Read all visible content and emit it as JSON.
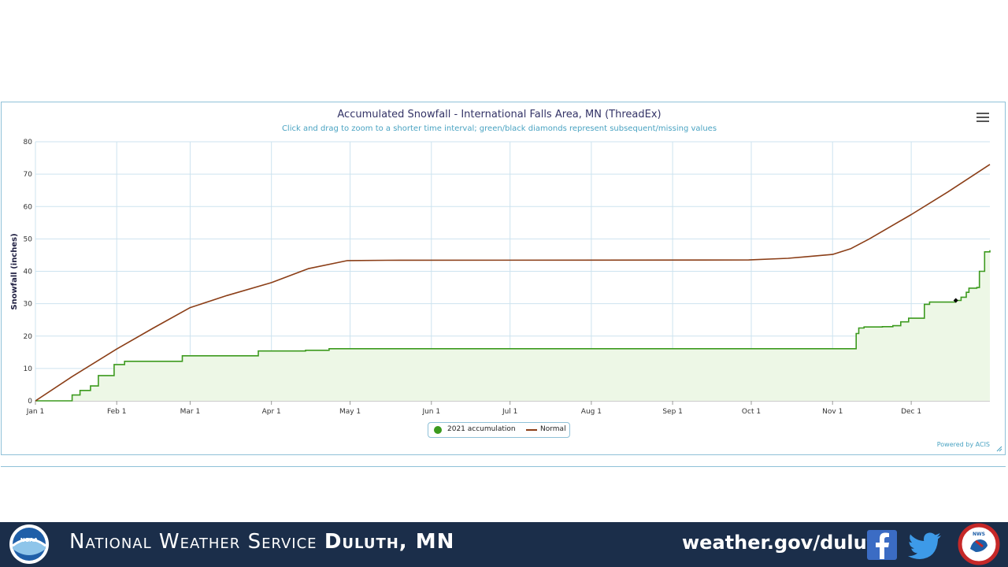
{
  "chart_data": {
    "type": "line",
    "title": "Accumulated Snowfall - International Falls Area, MN (ThreadEx)",
    "subtitle": "Click and drag to zoom to a shorter time interval; green/black diamonds represent subsequent/missing values",
    "ylabel": "Snowfall (inches)",
    "xlabel": "",
    "ylim": [
      0,
      80
    ],
    "yticks": [
      0,
      10,
      20,
      30,
      40,
      50,
      60,
      70,
      80
    ],
    "xticks": [
      "Jan 1",
      "Feb 1",
      "Mar 1",
      "Apr 1",
      "May 1",
      "Jun 1",
      "Jul 1",
      "Aug 1",
      "Sep 1",
      "Oct 1",
      "Nov 1",
      "Dec 1"
    ],
    "grid": true,
    "legend_position": "bottom-center",
    "credits": "Powered by ACIS",
    "series": [
      {
        "name": "2021 accumulation",
        "color": "#3c9a1e",
        "fill": "#edf7e6",
        "x": [
          "2021-01-01",
          "2021-01-14",
          "2021-01-15",
          "2021-01-17",
          "2021-01-18",
          "2021-01-20",
          "2021-01-22",
          "2021-01-23",
          "2021-01-25",
          "2021-01-26",
          "2021-01-31",
          "2021-02-01",
          "2021-02-04",
          "2021-02-05",
          "2021-02-26",
          "2021-02-27",
          "2021-03-27",
          "2021-03-28",
          "2021-04-14",
          "2021-04-22",
          "2021-04-23",
          "2021-11-01",
          "2021-11-10",
          "2021-11-11",
          "2021-11-13",
          "2021-11-20",
          "2021-11-24",
          "2021-11-26",
          "2021-11-27",
          "2021-11-30",
          "2021-12-03",
          "2021-12-06",
          "2021-12-08",
          "2021-12-15",
          "2021-12-18",
          "2021-12-20",
          "2021-12-22",
          "2021-12-23",
          "2021-12-26",
          "2021-12-27",
          "2021-12-29",
          "2021-12-31"
        ],
        "values": [
          0,
          0,
          1.8,
          1.8,
          3.2,
          3.2,
          4.6,
          4.6,
          7.8,
          7.8,
          11.2,
          11.2,
          12.2,
          12.2,
          13.9,
          13.9,
          15.4,
          15.4,
          15.6,
          15.6,
          16.1,
          16.1,
          20.8,
          22.5,
          22.8,
          22.9,
          23.2,
          23.2,
          24.4,
          25.5,
          25.5,
          29.8,
          30.5,
          30.5,
          31.0,
          32.0,
          33.5,
          34.8,
          35.0,
          40.0,
          46.0,
          46.5
        ]
      },
      {
        "name": "Normal",
        "color": "#8b3e17",
        "x": [
          "2021-01-01",
          "2021-01-15",
          "2021-02-01",
          "2021-02-15",
          "2021-03-01",
          "2021-03-15",
          "2021-04-01",
          "2021-04-15",
          "2021-04-30",
          "2021-05-15",
          "2021-09-30",
          "2021-10-15",
          "2021-11-01",
          "2021-11-08",
          "2021-11-15",
          "2021-12-01",
          "2021-12-15",
          "2021-12-31"
        ],
        "values": [
          0,
          7.5,
          16.0,
          22.5,
          28.8,
          32.5,
          36.5,
          40.8,
          43.3,
          43.4,
          43.5,
          44.0,
          45.2,
          47.0,
          50.0,
          57.5,
          64.5,
          73.0
        ]
      }
    ],
    "missing_markers": [
      {
        "x": "2021-12-18",
        "value": 31.0,
        "color": "#000000"
      }
    ]
  },
  "footer": {
    "org_prefix": "National Weather Service",
    "org_office": "Duluth, MN",
    "url": "weather.gov/duluth",
    "noaa_logo": "NOAA",
    "social_icons": [
      "facebook-icon",
      "twitter-icon"
    ],
    "nws_logo": "NWS"
  },
  "colors": {
    "footer_bg": "#1b2e4a",
    "grid": "#cde3ef",
    "title": "#333366",
    "subtitle": "#4aa3c2"
  }
}
